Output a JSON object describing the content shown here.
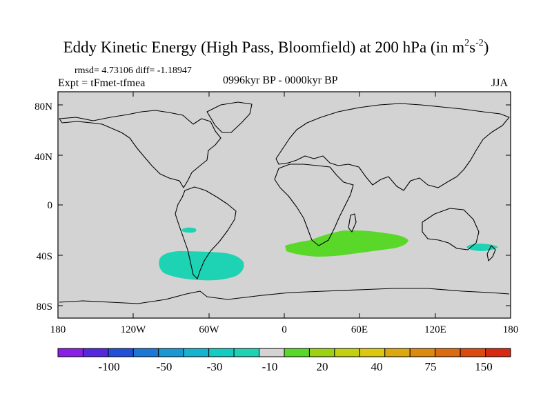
{
  "title": {
    "main": "Eddy Kinetic Energy (High Pass, Bloomfield) at 200 hPa (in m",
    "unit_exp1": "2",
    "unit_mid": "s",
    "unit_exp2": "-2",
    "unit_end": ")"
  },
  "stats_line": "rmsd= 4.73106  diff= -1.18947",
  "experiment_line": "Expt = tFmet-tfmea",
  "period_line": "0996kyr BP - 0000kyr BP",
  "season_label": "JJA",
  "map": {
    "lat_labels": [
      "80N",
      "40N",
      "0",
      "40S",
      "80S"
    ],
    "lon_labels": [
      "180",
      "120W",
      "60W",
      "0",
      "60E",
      "120E",
      "180"
    ],
    "background_color": "#d3d3d3",
    "coast_color": "#000000"
  },
  "anomaly_regions": [
    {
      "region": "South Pacific off Chile",
      "color": "#1ed3b4"
    },
    {
      "region": "South Atlantic",
      "color": "#1ed3b4"
    },
    {
      "region": "South Indian Ocean",
      "color": "#5ad82a"
    },
    {
      "region": "Tasman Sea",
      "color": "#1ed3b4"
    }
  ],
  "colorbar": {
    "colors": [
      "#8a20e6",
      "#5528e0",
      "#2050d8",
      "#1b78d8",
      "#1a98d4",
      "#14b4d0",
      "#12ccc4",
      "#1ed3b4",
      "#d3d3d3",
      "#5ad82a",
      "#9cd210",
      "#c2d010",
      "#dcc80e",
      "#dca80e",
      "#dc8a0e",
      "#dc6a0e",
      "#dc4a10",
      "#d82810"
    ],
    "labels": [
      "-100",
      "-50",
      "-30",
      "-10",
      "20",
      "40",
      "75",
      "150"
    ]
  }
}
